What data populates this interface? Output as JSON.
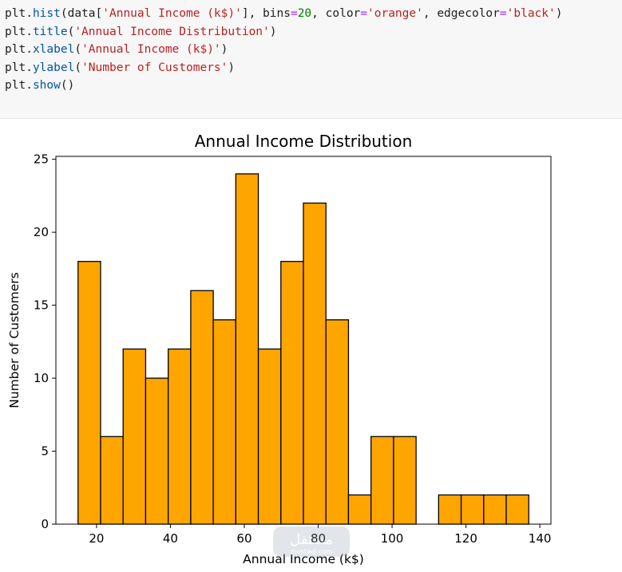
{
  "code_cell": {
    "lines": [
      [
        [
          "plt",
          "plain"
        ],
        [
          ".",
          "plain"
        ],
        [
          "hist",
          "fn"
        ],
        [
          "(data[",
          "plain"
        ],
        [
          "'Annual Income (k$)'",
          "str"
        ],
        [
          "], bins",
          "plain"
        ],
        [
          "=",
          "op"
        ],
        [
          "20",
          "num"
        ],
        [
          ", color",
          "plain"
        ],
        [
          "=",
          "op"
        ],
        [
          "'orange'",
          "str"
        ],
        [
          ", edgecolor",
          "plain"
        ],
        [
          "=",
          "op"
        ],
        [
          "'black'",
          "str"
        ],
        [
          ")",
          "plain"
        ]
      ],
      [
        [
          "plt",
          "plain"
        ],
        [
          ".",
          "plain"
        ],
        [
          "title",
          "fn"
        ],
        [
          "(",
          "plain"
        ],
        [
          "'Annual Income Distribution'",
          "str"
        ],
        [
          ")",
          "plain"
        ]
      ],
      [
        [
          "plt",
          "plain"
        ],
        [
          ".",
          "plain"
        ],
        [
          "xlabel",
          "fn"
        ],
        [
          "(",
          "plain"
        ],
        [
          "'Annual Income (k$)'",
          "str"
        ],
        [
          ")",
          "plain"
        ]
      ],
      [
        [
          "plt",
          "plain"
        ],
        [
          ".",
          "plain"
        ],
        [
          "ylabel",
          "fn"
        ],
        [
          "(",
          "plain"
        ],
        [
          "'Number of Customers'",
          "str"
        ],
        [
          ")",
          "plain"
        ]
      ],
      [
        [
          "plt",
          "plain"
        ],
        [
          ".",
          "plain"
        ],
        [
          "show",
          "fn"
        ],
        [
          "()",
          "plain"
        ]
      ]
    ]
  },
  "colors": {
    "bar_fill": "#ffa500",
    "bar_edge": "#000000",
    "code_string": "#ba2121",
    "code_number": "#008000",
    "code_operator": "#aa22ff",
    "code_function": "#0055aa"
  },
  "watermark": {
    "text": "مستقل",
    "subtext": "mostaql.com"
  },
  "chart_data": {
    "type": "bar",
    "title": "Annual Income Distribution",
    "xlabel": "Annual Income (k$)",
    "ylabel": "Number of Customers",
    "xlim": [
      9,
      143
    ],
    "ylim": [
      0,
      25.2
    ],
    "xticks": [
      20,
      40,
      60,
      80,
      100,
      120,
      140
    ],
    "yticks": [
      0,
      5,
      10,
      15,
      20,
      25
    ],
    "grid": false,
    "bins": {
      "edges": [
        15,
        21.1,
        27.2,
        33.3,
        39.4,
        45.5,
        51.6,
        57.7,
        63.8,
        69.9,
        76,
        82.1,
        88.2,
        94.3,
        100.4,
        106.5,
        112.6,
        118.7,
        124.8,
        130.9,
        137
      ],
      "counts": [
        18,
        6,
        12,
        10,
        12,
        16,
        14,
        24,
        12,
        18,
        22,
        14,
        2,
        6,
        6,
        0,
        2,
        2,
        2,
        2
      ]
    }
  }
}
